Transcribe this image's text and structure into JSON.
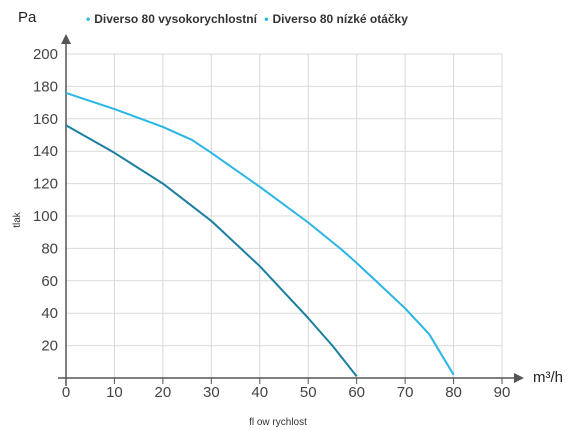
{
  "chart_data": {
    "type": "line",
    "ylabel_unit": "Pa",
    "xlabel_unit": "m³/h",
    "ylabel": "tlak",
    "xlabel": "fl ow rychlost",
    "xlim": [
      0,
      90
    ],
    "ylim": [
      0,
      200
    ],
    "x_ticks": [
      "0",
      "10",
      "20",
      "30",
      "40",
      "50",
      "60",
      "70",
      "80",
      "90"
    ],
    "y_ticks": [
      "20",
      "40",
      "60",
      "80",
      "100",
      "120",
      "140",
      "160",
      "180",
      "200"
    ],
    "grid": true,
    "legend_position": "top",
    "series": [
      {
        "name": "Diverso 80 vysokorychlostní",
        "color": "#29b5e5",
        "points": [
          [
            0,
            176
          ],
          [
            10,
            166
          ],
          [
            20,
            155
          ],
          [
            26,
            147
          ],
          [
            30,
            139
          ],
          [
            40,
            118
          ],
          [
            50,
            96
          ],
          [
            57,
            79
          ],
          [
            60,
            71
          ],
          [
            70,
            43
          ],
          [
            75,
            27
          ],
          [
            80,
            2
          ]
        ]
      },
      {
        "name": "Diverso 80 nízké otáčky",
        "color": "#1a7fa0",
        "points": [
          [
            0,
            156
          ],
          [
            10,
            139
          ],
          [
            20,
            120
          ],
          [
            30,
            97
          ],
          [
            40,
            69
          ],
          [
            50,
            37
          ],
          [
            55,
            20
          ],
          [
            60,
            1
          ]
        ]
      }
    ]
  }
}
